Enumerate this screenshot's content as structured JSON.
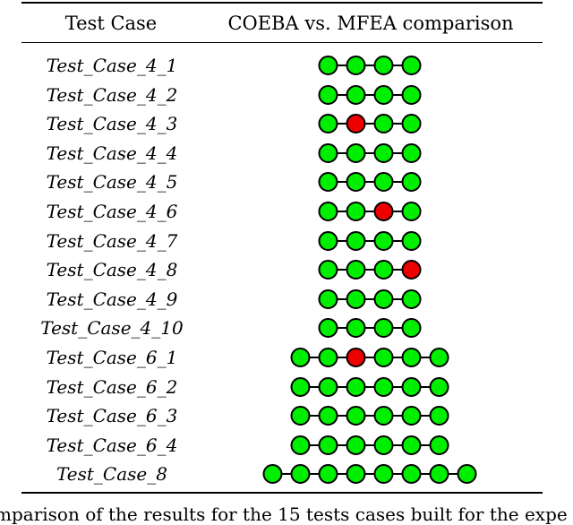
{
  "table": {
    "header": {
      "test_case": "Test Case",
      "comparison": "COEBA vs. MFEA comparison"
    },
    "rows": [
      {
        "name": "Test_Case_4_1",
        "results": [
          "win",
          "win",
          "win",
          "win"
        ]
      },
      {
        "name": "Test_Case_4_2",
        "results": [
          "win",
          "win",
          "win",
          "win"
        ]
      },
      {
        "name": "Test_Case_4_3",
        "results": [
          "win",
          "loss",
          "win",
          "win"
        ]
      },
      {
        "name": "Test_Case_4_4",
        "results": [
          "win",
          "win",
          "win",
          "win"
        ]
      },
      {
        "name": "Test_Case_4_5",
        "results": [
          "win",
          "win",
          "win",
          "win"
        ]
      },
      {
        "name": "Test_Case_4_6",
        "results": [
          "win",
          "win",
          "loss",
          "win"
        ]
      },
      {
        "name": "Test_Case_4_7",
        "results": [
          "win",
          "win",
          "win",
          "win"
        ]
      },
      {
        "name": "Test_Case_4_8",
        "results": [
          "win",
          "win",
          "win",
          "loss"
        ]
      },
      {
        "name": "Test_Case_4_9",
        "results": [
          "win",
          "win",
          "win",
          "win"
        ]
      },
      {
        "name": "Test_Case_4_10",
        "results": [
          "win",
          "win",
          "win",
          "win"
        ]
      },
      {
        "name": "Test_Case_6_1",
        "results": [
          "win",
          "win",
          "loss",
          "win",
          "win",
          "win"
        ]
      },
      {
        "name": "Test_Case_6_2",
        "results": [
          "win",
          "win",
          "win",
          "win",
          "win",
          "win"
        ]
      },
      {
        "name": "Test_Case_6_3",
        "results": [
          "win",
          "win",
          "win",
          "win",
          "win",
          "win"
        ]
      },
      {
        "name": "Test_Case_6_4",
        "results": [
          "win",
          "win",
          "win",
          "win",
          "win",
          "win"
        ]
      },
      {
        "name": "Test_Case_8",
        "results": [
          "win",
          "win",
          "win",
          "win",
          "win",
          "win",
          "win",
          "win"
        ]
      }
    ]
  },
  "colors": {
    "win": "#00ee00",
    "loss": "#ee0000",
    "outline": "#000000"
  },
  "caption": "mparison of the results for the 15 tests cases built for the expe"
}
